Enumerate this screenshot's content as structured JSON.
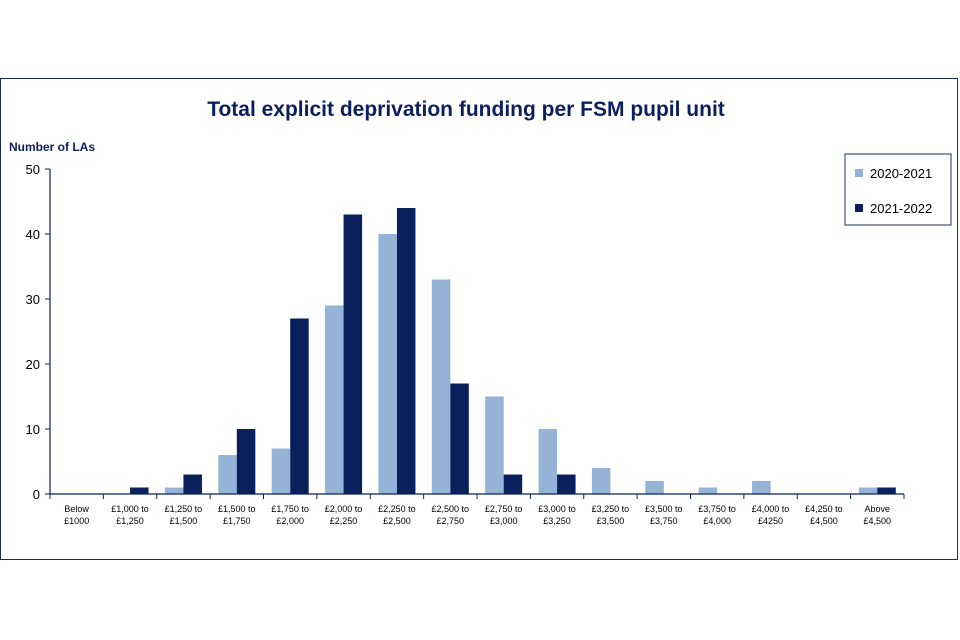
{
  "colors": {
    "series_2020": "#95b3d7",
    "series_2021": "#0b1f5c",
    "axis": "#0b1f5c",
    "frame": "#1a2a5e"
  },
  "chart_data": {
    "type": "bar",
    "title": "Total explicit deprivation funding per FSM pupil unit",
    "ylabel": "Number of LAs",
    "xlabel": "",
    "ylim": [
      0,
      50
    ],
    "yticks": [
      0,
      10,
      20,
      30,
      40,
      50
    ],
    "grid": false,
    "legend_position": "top-right",
    "categories": [
      [
        "Below",
        "£1000"
      ],
      [
        "£1,000 to",
        "£1,250"
      ],
      [
        "£1,250 to",
        "£1,500"
      ],
      [
        "£1,500 to",
        "£1,750"
      ],
      [
        "£1,750 to",
        "£2,000"
      ],
      [
        "£2,000 to",
        "£2,250"
      ],
      [
        "£2,250 to",
        "£2,500"
      ],
      [
        "£2,500 to",
        "£2,750"
      ],
      [
        "£2,750 to",
        "£3,000"
      ],
      [
        "£3,000 to",
        "£3,250"
      ],
      [
        "£3,250 to",
        "£3,500"
      ],
      [
        "£3,500 to",
        "£3,750"
      ],
      [
        "£3,750 to",
        "£4,000"
      ],
      [
        "£4,000 to",
        "£4250"
      ],
      [
        "£4,250 to",
        "£4,500"
      ],
      [
        "Above",
        "£4,500"
      ]
    ],
    "series": [
      {
        "name": "2020-2021",
        "values": [
          0,
          0,
          1,
          6,
          7,
          29,
          40,
          33,
          15,
          10,
          4,
          2,
          1,
          2,
          0,
          1
        ]
      },
      {
        "name": "2021-2022",
        "values": [
          0,
          1,
          3,
          10,
          27,
          43,
          44,
          17,
          3,
          3,
          0,
          0,
          0,
          0,
          0,
          1
        ]
      }
    ]
  }
}
